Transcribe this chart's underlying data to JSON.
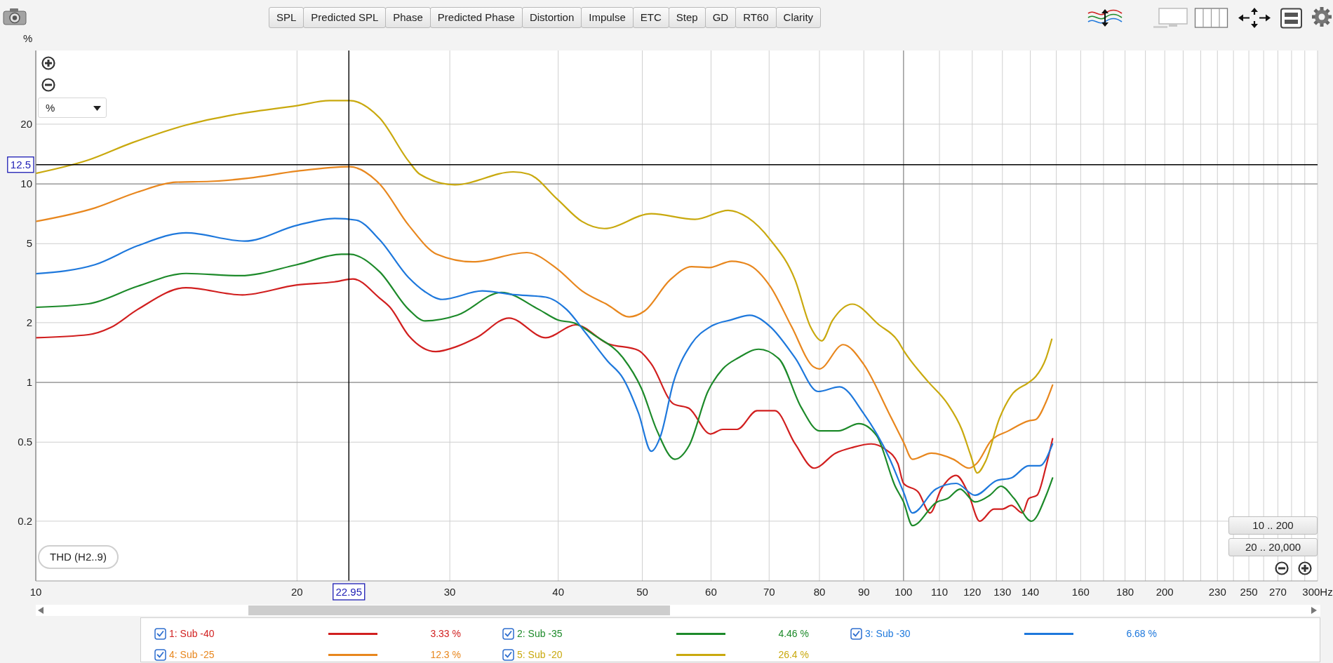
{
  "chart_data": {
    "type": "line",
    "ylabel": "%",
    "log": "xy",
    "xlim": [
      10,
      300
    ],
    "ylim": [
      0.1,
      47
    ],
    "xticks": [
      10,
      20,
      30,
      40,
      50,
      60,
      70,
      80,
      90,
      100,
      110,
      120,
      130,
      140,
      {
        "value": 150,
        "label": null
      },
      160,
      {
        "value": 170,
        "label": null
      },
      180,
      {
        "value": 190,
        "label": null
      },
      200,
      {
        "value": 210,
        "label": null
      },
      {
        "value": 220,
        "label": null
      },
      230,
      {
        "value": 240,
        "label": null
      },
      250,
      {
        "value": 260,
        "label": null
      },
      270,
      {
        "value": 280,
        "label": null
      },
      {
        "value": 290,
        "label": null
      },
      {
        "value": 300,
        "label": "300Hz"
      }
    ],
    "yticks": [
      0.2,
      0.5,
      1,
      2,
      5,
      10,
      20
    ],
    "grid": true,
    "legend": "bottom",
    "series": [
      {
        "name": "1: Sub -40",
        "color": "#d11f1f",
        "x": [
          10,
          11.5,
          12.2,
          13.1,
          14.9,
          17.3,
          20,
          22.1,
          23.2,
          24.9,
          25.6,
          26.9,
          28.9,
          30.6,
          32.2,
          35.1,
          38.7,
          41.9,
          45.6,
          49.5,
          51.2,
          54.3,
          56.6,
          59.9,
          61.9,
          64.3,
          67.8,
          71.1,
          75,
          78.9,
          83.5,
          87.3,
          91.8,
          95.3,
          98.5,
          100,
          104,
          107.3,
          110.5,
          115,
          118.6,
          122.4,
          127.1,
          130,
          133.1,
          137.1,
          139.4,
          142.5,
          146,
          148.5
        ],
        "values": [
          1.68,
          1.74,
          1.89,
          2.33,
          3.0,
          2.76,
          3.1,
          3.21,
          3.32,
          2.66,
          2.39,
          1.72,
          1.43,
          1.52,
          1.68,
          2.11,
          1.68,
          1.95,
          1.57,
          1.45,
          1.24,
          0.78,
          0.74,
          0.55,
          0.58,
          0.58,
          0.72,
          0.72,
          0.49,
          0.37,
          0.44,
          0.47,
          0.49,
          0.46,
          0.39,
          0.31,
          0.28,
          0.22,
          0.29,
          0.34,
          0.28,
          0.2,
          0.23,
          0.23,
          0.24,
          0.22,
          0.26,
          0.27,
          0.38,
          0.52
        ]
      },
      {
        "name": "2: Sub -35",
        "color": "#1d8a2a",
        "x": [
          10,
          11.5,
          13.1,
          14.9,
          17.2,
          20,
          22.5,
          23,
          24.9,
          26.9,
          28.1,
          30.6,
          34.4,
          38,
          39.9,
          41.9,
          44.1,
          47.5,
          49.9,
          52,
          54.5,
          56.6,
          59.5,
          61.9,
          64.5,
          68.1,
          71.9,
          76.2,
          80,
          84.1,
          88.8,
          93.1,
          97.8,
          100,
          102.4,
          109.3,
          112.4,
          116.2,
          120.9,
          125.7,
          129.5,
          134.1,
          140.4,
          146,
          148.5
        ],
        "values": [
          2.39,
          2.49,
          3.05,
          3.54,
          3.45,
          3.92,
          4.42,
          4.42,
          3.61,
          2.33,
          2.04,
          2.18,
          2.84,
          2.33,
          2.07,
          1.98,
          1.72,
          1.33,
          0.93,
          0.57,
          0.41,
          0.48,
          0.9,
          1.17,
          1.33,
          1.47,
          1.31,
          0.75,
          0.57,
          0.57,
          0.62,
          0.54,
          0.3,
          0.25,
          0.19,
          0.25,
          0.26,
          0.29,
          0.25,
          0.27,
          0.3,
          0.26,
          0.2,
          0.27,
          0.33
        ]
      },
      {
        "name": "3: Sub -30",
        "color": "#1e78dc",
        "x": [
          10,
          11.7,
          13.1,
          14.9,
          17.4,
          20,
          22.1,
          23.4,
          24.9,
          26.9,
          28.1,
          29.4,
          32.7,
          35.5,
          38.7,
          40.9,
          43,
          45.6,
          47.5,
          49.5,
          51.2,
          52.5,
          54.3,
          57,
          59.9,
          63.4,
          66.5,
          70.2,
          75,
          79.7,
          84.4,
          89.9,
          96.2,
          100,
          102.4,
          108.9,
          115,
          120.9,
          128,
          133.1,
          139.4,
          143.5,
          148.5
        ],
        "values": [
          3.53,
          3.92,
          4.88,
          5.67,
          5.15,
          6.19,
          6.7,
          6.57,
          5.23,
          3.37,
          2.86,
          2.62,
          2.89,
          2.77,
          2.69,
          2.33,
          1.78,
          1.28,
          1.05,
          0.7,
          0.45,
          0.54,
          1.0,
          1.57,
          1.91,
          2.07,
          2.18,
          1.91,
          1.33,
          0.9,
          0.95,
          0.7,
          0.42,
          0.28,
          0.22,
          0.29,
          0.31,
          0.27,
          0.32,
          0.33,
          0.38,
          0.38,
          0.49
        ]
      },
      {
        "name": "4: Sub -25",
        "color": "#e8871e",
        "x": [
          10,
          11.7,
          13.1,
          14.5,
          15.9,
          17.6,
          20,
          23,
          24.9,
          26.9,
          29,
          31.9,
          36.8,
          39.9,
          42.6,
          45.6,
          48.3,
          50.3,
          53.8,
          57,
          59.7,
          63.4,
          66.2,
          70.2,
          74.3,
          78.7,
          80,
          85.2,
          89.9,
          96.2,
          100,
          102.4,
          107.7,
          114.1,
          119,
          121.4,
          126.2,
          132.1,
          139.4,
          142,
          146,
          148.5
        ],
        "values": [
          6.47,
          7.57,
          9.1,
          10.2,
          10.3,
          10.7,
          11.6,
          12.2,
          10,
          6.19,
          4.42,
          4.05,
          4.51,
          3.73,
          2.89,
          2.46,
          2.14,
          2.29,
          3.28,
          3.83,
          3.79,
          4.08,
          3.93,
          3.05,
          1.91,
          1.2,
          1.17,
          1.55,
          1.24,
          0.7,
          0.5,
          0.41,
          0.44,
          0.41,
          0.37,
          0.39,
          0.51,
          0.57,
          0.64,
          0.65,
          0.8,
          0.97
        ]
      },
      {
        "name": "5: Sub -20",
        "color": "#c9a90e",
        "x": [
          10,
          11.5,
          12.9,
          14.9,
          16.9,
          20,
          21.8,
          23,
          24.9,
          26.9,
          27.7,
          30.4,
          35.5,
          37,
          39.9,
          42.6,
          45.2,
          51.2,
          57.5,
          62.8,
          66.2,
          70.2,
          75,
          78.1,
          80.5,
          82.8,
          87.3,
          93.7,
          98.5,
          100,
          106.5,
          112.4,
          116.7,
          119.5,
          121.6,
          124.3,
          129,
          133.1,
          139.4,
          142,
          146,
          148.2
        ],
        "values": [
          11.3,
          13.2,
          16.1,
          19.8,
          22.3,
          24.8,
          26.3,
          26.3,
          21.5,
          13,
          11.2,
          9.9,
          11.5,
          11.2,
          8.38,
          6.47,
          5.96,
          7.08,
          6.63,
          7.36,
          6.75,
          5.24,
          3.28,
          1.91,
          1.62,
          2.05,
          2.48,
          1.95,
          1.62,
          1.45,
          1.02,
          0.78,
          0.58,
          0.43,
          0.35,
          0.4,
          0.66,
          0.86,
          1.0,
          1.07,
          1.33,
          1.65
        ]
      }
    ],
    "ref_lines": [
      {
        "axis": "x",
        "value": 22.95,
        "label": "22.95",
        "color": "#000000"
      },
      {
        "axis": "y",
        "value": 12.5,
        "label": "12.5",
        "color": "#000000"
      }
    ],
    "annotations": [
      "SPL",
      "Predicted SPL",
      "Phase",
      "Predicted Phase",
      "Distortion",
      "Impulse",
      "ETC",
      "Step",
      "GD",
      "RT60",
      "Clarity",
      "%",
      "THD (H2..9)",
      "10 .. 200",
      "20 .. 20,000",
      "3.33 %",
      "4.46 %",
      "6.68 %",
      "12.3 %",
      "26.4 %"
    ]
  }
}
